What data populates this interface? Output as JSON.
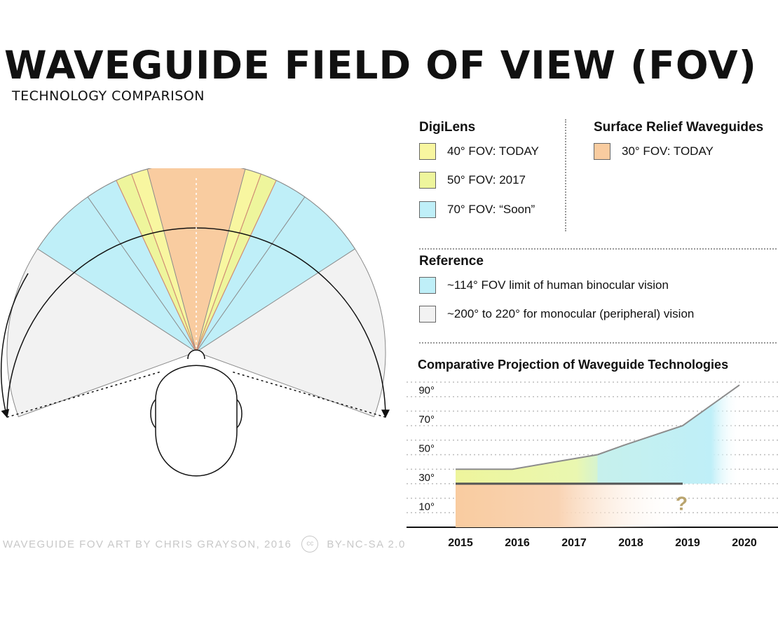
{
  "header": {
    "title": "WAVEGUIDE FIELD OF VIEW (FOV)",
    "subtitle": "TECHNOLOGY COMPARISON"
  },
  "legend": {
    "digilens": {
      "heading": "DigiLens",
      "items": [
        {
          "label": "40° FOV: TODAY",
          "color": "#f8f6a0"
        },
        {
          "label": "50° FOV: 2017",
          "color": "#eef59c"
        },
        {
          "label": "70° FOV: “Soon”",
          "color": "#bfeff8"
        }
      ]
    },
    "surface_relief": {
      "heading": "Surface Relief Waveguides",
      "items": [
        {
          "label": "30° FOV: TODAY",
          "color": "#f9cca0"
        }
      ]
    },
    "reference": {
      "heading": "Reference",
      "items": [
        {
          "label": "~114° FOV limit of human binocular vision",
          "color": "#bfeff8"
        },
        {
          "label": "~200° to 220° for monocular (peripheral) vision",
          "color": "#f2f2f2"
        }
      ]
    }
  },
  "fov_diagram": {
    "wedges": [
      {
        "name": "monocular-peripheral",
        "degrees": 220,
        "color": "#f2f2f2"
      },
      {
        "name": "binocular-limit",
        "degrees": 114,
        "color": "#bfeff8"
      },
      {
        "name": "digilens-soon",
        "degrees": 70,
        "color": "#bfeff8"
      },
      {
        "name": "digilens-2017",
        "degrees": 50,
        "color": "#eef59c"
      },
      {
        "name": "digilens-today",
        "degrees": 40,
        "color": "#f8f6a0"
      },
      {
        "name": "surface-relief-today",
        "degrees": 30,
        "color": "#f9cca0"
      }
    ]
  },
  "projection": {
    "title": "Comparative Projection of Waveguide Technologies",
    "question_mark": "?"
  },
  "chart_data": {
    "type": "area",
    "title": "Comparative Projection of Waveguide Technologies",
    "xlabel": "",
    "ylabel": "",
    "categories": [
      "2015",
      "2016",
      "2017",
      "2018",
      "2019",
      "2020"
    ],
    "ylim": [
      0,
      100
    ],
    "ytick_labels": [
      "10°",
      "30°",
      "50°",
      "70°",
      "90°"
    ],
    "yticks": [
      10,
      30,
      50,
      70,
      90
    ],
    "grid": true,
    "series": [
      {
        "name": "Surface Relief Waveguides",
        "color": "#f9cca0",
        "points": [
          [
            2015,
            30
          ],
          [
            2016,
            30
          ],
          [
            2017,
            30
          ],
          [
            2018,
            30
          ],
          [
            2019,
            30
          ]
        ]
      },
      {
        "name": "DigiLens",
        "color": "#eef59c",
        "points": [
          [
            2015,
            40
          ],
          [
            2016,
            40
          ],
          [
            2017.5,
            50
          ]
        ]
      },
      {
        "name": "DigiLens (projected)",
        "color": "#bfeff8",
        "points": [
          [
            2017.5,
            50
          ],
          [
            2018,
            57
          ],
          [
            2019,
            70
          ],
          [
            2020,
            98
          ]
        ]
      }
    ],
    "annotations": [
      "?"
    ]
  },
  "credit": {
    "text": "WAVEGUIDE FOV ART BY CHRIS GRAYSON, 2016",
    "cc_icon": "cc",
    "license": "BY-NC-SA 2.0"
  }
}
